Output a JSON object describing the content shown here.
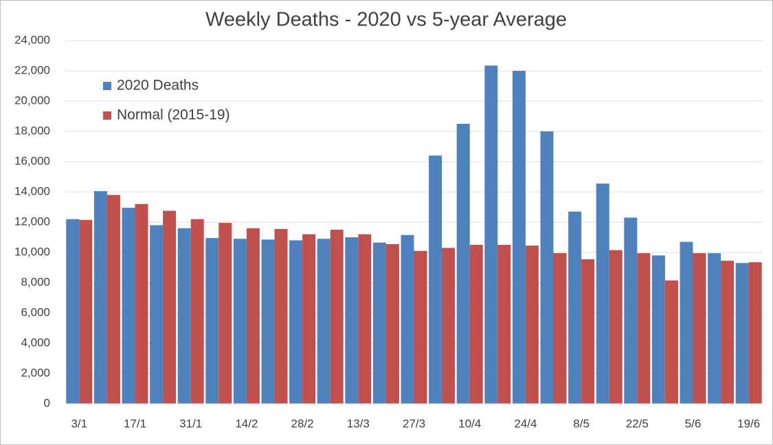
{
  "chart_data": {
    "type": "bar",
    "title": "Weekly Deaths - 2020 vs 5-year Average",
    "categories": [
      "3/1",
      null,
      "17/1",
      null,
      "31/1",
      null,
      "14/2",
      null,
      "28/2",
      null,
      "13/3",
      null,
      "27/3",
      null,
      "10/4",
      null,
      "24/4",
      null,
      "8/5",
      null,
      "22/5",
      null,
      "5/6",
      null,
      "19/6"
    ],
    "series": [
      {
        "name": "2020 Deaths",
        "color": "#4f81bd",
        "values": [
          12200,
          14050,
          12950,
          11800,
          11600,
          10950,
          10900,
          10850,
          10800,
          10900,
          11000,
          10650,
          11150,
          16400,
          18500,
          22350,
          22000,
          18000,
          12700,
          14550,
          12300,
          9800,
          10700,
          9950,
          9300
        ]
      },
      {
        "name": "Normal (2015-19)",
        "color": "#c0504d",
        "values": [
          12150,
          13800,
          13200,
          12750,
          12200,
          11950,
          11600,
          11550,
          11200,
          11500,
          11200,
          10550,
          10100,
          10300,
          10500,
          10500,
          10450,
          9950,
          9550,
          10150,
          9950,
          8150,
          9950,
          9450,
          9350
        ]
      }
    ],
    "ylim": [
      0,
      24000
    ],
    "yticks": [
      0,
      {
        "value": 2000,
        "label": "2,000"
      },
      {
        "value": 4000,
        "label": "4,000"
      },
      {
        "value": 6000,
        "label": "6,000"
      },
      {
        "value": 8000,
        "label": "8,000"
      },
      {
        "value": 10000,
        "label": "10,000"
      },
      {
        "value": 12000,
        "label": "12,000"
      },
      {
        "value": 14000,
        "label": "14,000"
      },
      {
        "value": 16000,
        "label": "16,000"
      },
      {
        "value": 18000,
        "label": "18,000"
      },
      {
        "value": 20000,
        "label": "20,000"
      },
      {
        "value": 22000,
        "label": "22,000"
      },
      {
        "value": 24000,
        "label": "24,000"
      }
    ],
    "grid": true,
    "legend": "top-left"
  }
}
